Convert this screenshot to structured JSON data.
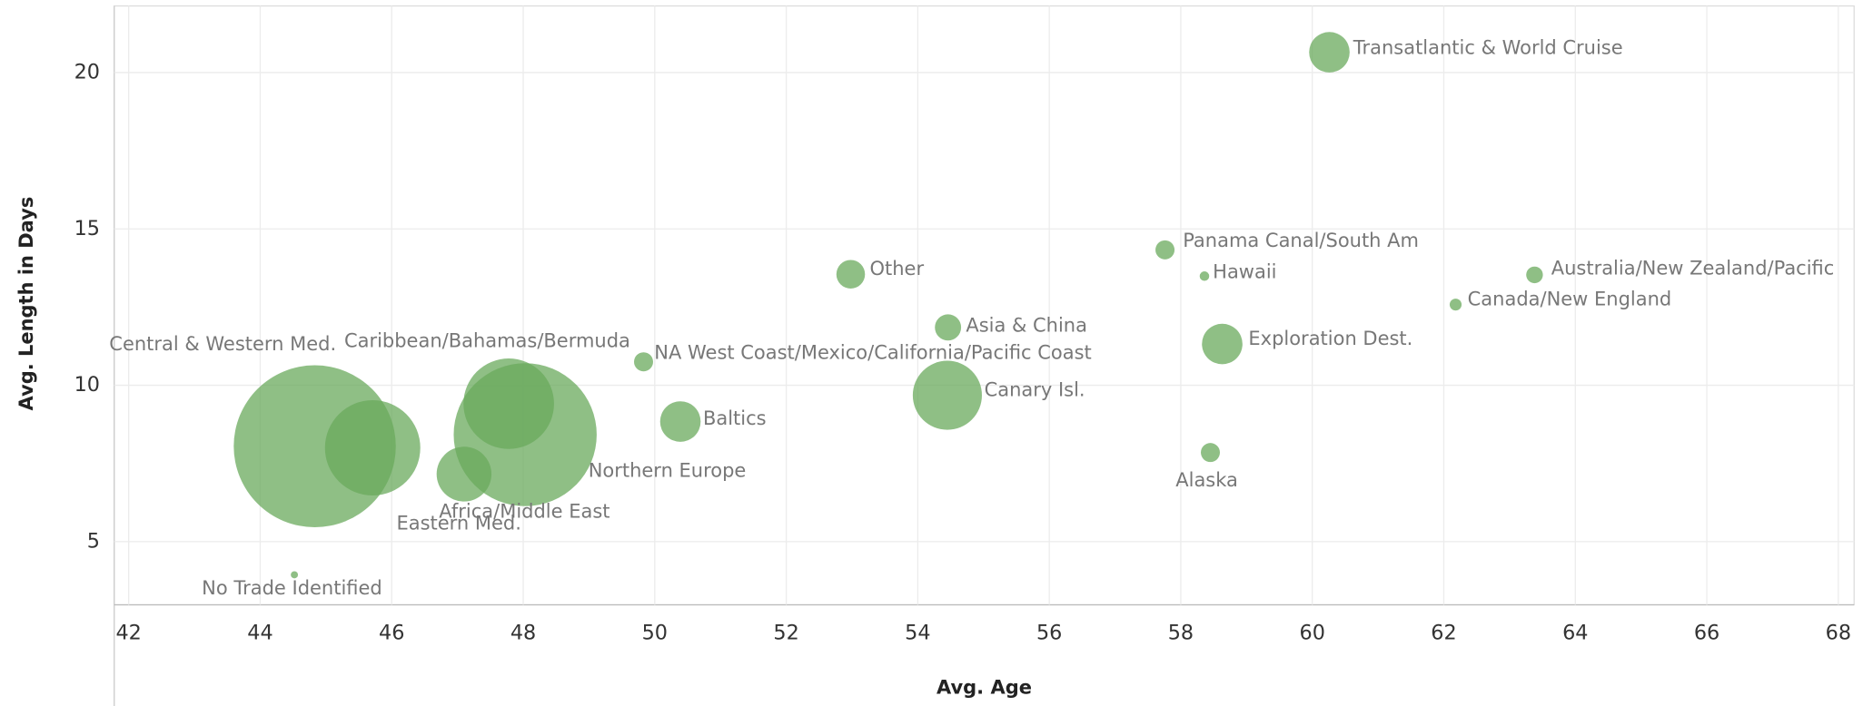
{
  "chart_data": {
    "type": "scatter",
    "x_label": "Avg. Age",
    "y_label": "Avg. Length in Days",
    "labels": [
      "Transatlantic & World Cruise",
      "Panama Canal/South Am",
      "Hawaii",
      "Australia/New Zealand/Pacific",
      "Canada/New England",
      "Other",
      "Asia & China",
      "Exploration Dest.",
      "NA West Coast/Mexico/California/Pacific Coast",
      "Canary Isl.",
      "Baltics",
      "Alaska",
      "Central & Western Med.",
      "Eastern Med.",
      "Caribbean/Bahamas/Bermuda",
      "Northern Europe",
      "Africa/Middle East",
      "No Trade Identified"
    ],
    "x": [
      60.26,
      57.76,
      58.36,
      63.38,
      62.18,
      52.98,
      54.46,
      58.63,
      49.83,
      54.45,
      50.39,
      58.45,
      44.83,
      45.71,
      47.78,
      48.03,
      47.1,
      44.52
    ],
    "values": [
      20.65,
      14.33,
      13.49,
      13.53,
      12.58,
      13.55,
      11.85,
      11.32,
      10.75,
      9.68,
      8.84,
      7.85,
      8.05,
      8.0,
      9.41,
      8.42,
      7.16,
      3.94
    ],
    "sizes": [
      289,
      64,
      16,
      49,
      25,
      144,
      121,
      289,
      64,
      841,
      289,
      64,
      4624,
      1600,
      1444,
      3600,
      529,
      9
    ],
    "color": "#6aaa5c",
    "xlim": [
      41.78,
      68.24
    ],
    "ylim": [
      2.98,
      22.13
    ],
    "xticks": [
      42,
      44,
      46,
      48,
      50,
      52,
      54,
      56,
      58,
      60,
      62,
      64,
      66,
      68
    ],
    "yticks": [
      5,
      10,
      15,
      20
    ],
    "grid": true
  }
}
